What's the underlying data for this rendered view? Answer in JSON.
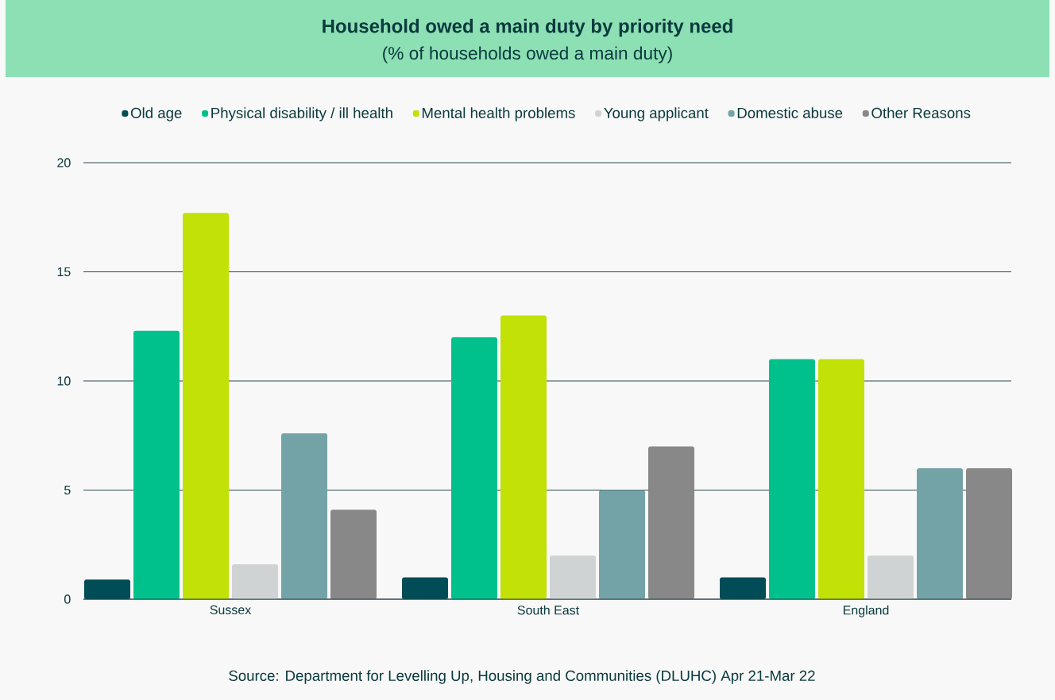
{
  "chart_data": {
    "type": "bar",
    "title": "Household owed a main duty by priority need",
    "subtitle": "(% of households owed a main duty)",
    "categories": [
      "Sussex",
      "South East",
      "England"
    ],
    "series": [
      {
        "name": "Old age",
        "color": "#004d57",
        "values": [
          0.9,
          1,
          1
        ]
      },
      {
        "name": "Physical disability / ill health",
        "color": "#00c18c",
        "values": [
          12.3,
          12,
          11
        ]
      },
      {
        "name": "Mental health problems",
        "color": "#c2e106",
        "values": [
          17.7,
          13,
          11
        ]
      },
      {
        "name": "Young applicant",
        "color": "#d0d3d4",
        "values": [
          1.6,
          2,
          2
        ]
      },
      {
        "name": "Domestic abuse",
        "color": "#74a3a7",
        "values": [
          7.6,
          5,
          6
        ]
      },
      {
        "name": "Other Reasons",
        "color": "#888888",
        "values": [
          4.1,
          7,
          6
        ]
      }
    ],
    "ylim": [
      0,
      20
    ],
    "yticks": [
      0,
      5,
      10,
      15,
      20
    ],
    "grid": "y",
    "legend": "top",
    "annotations": [
      "Source:  Department for Levelling Up, Housing and Communities (DLUHC) Apr 21-Mar 22"
    ]
  }
}
